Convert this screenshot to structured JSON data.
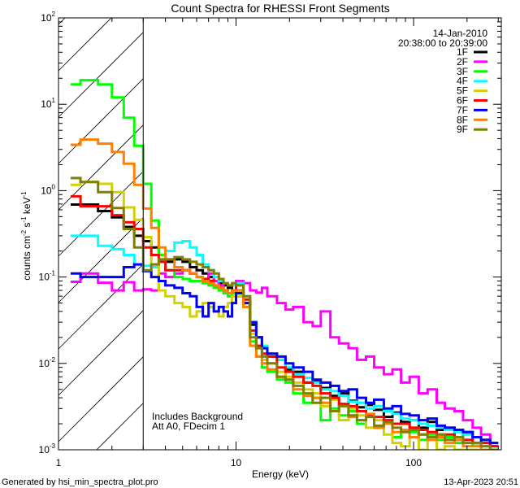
{
  "chart_data": {
    "type": "line",
    "step": true,
    "title": "Count Spectra for RHESSI Front Segments",
    "xlabel": "Energy (keV)",
    "ylabel": "counts cm-2 s-1 keV-1",
    "ylabel_parts": [
      "counts cm",
      "-2",
      " s",
      "-1",
      " keV",
      "-1"
    ],
    "xscale": "log",
    "yscale": "log",
    "xlim": [
      1,
      312
    ],
    "ylim": [
      0.001,
      100
    ],
    "x_ticks": [
      {
        "value": 1,
        "label": "1"
      },
      {
        "value": 10,
        "label": "10"
      },
      {
        "value": 100,
        "label": "100"
      }
    ],
    "y_ticks": [
      {
        "value": 100,
        "base": "10",
        "exp": "2"
      },
      {
        "value": 10,
        "base": "10",
        "exp": "1"
      },
      {
        "value": 1,
        "base": "10",
        "exp": "0"
      },
      {
        "value": 0.1,
        "base": "10",
        "exp": "-1"
      },
      {
        "value": 0.01,
        "base": "10",
        "exp": "-2"
      },
      {
        "value": 0.001,
        "base": "10",
        "exp": "-3"
      }
    ],
    "shaded_region_keV": [
      1,
      3
    ],
    "legend": {
      "position": "top-right",
      "date": "14-Jan-2010",
      "time_range": "20:38:00 to 20:39:00"
    },
    "annotations": [
      "Includes Background",
      "Att A0, FDecim 1"
    ],
    "bin_edges_keV": [
      1.17,
      1.33,
      1.67,
      2.0,
      2.33,
      2.67,
      3.0,
      3.33,
      3.67,
      4.0,
      4.5,
      5.0,
      5.5,
      6.0,
      6.5,
      7.0,
      7.5,
      8.0,
      8.5,
      9.0,
      9.5,
      10,
      11,
      12,
      13,
      14,
      15,
      17,
      19,
      21,
      24,
      27,
      30,
      34,
      38,
      43,
      48,
      54,
      60,
      68,
      76,
      85,
      95,
      107,
      120,
      135,
      150,
      170,
      190,
      215,
      240,
      270,
      300
    ],
    "series": [
      {
        "name": "1F",
        "color": "#000000",
        "values": [
          0.69,
          0.69,
          0.58,
          0.49,
          0.38,
          0.3,
          0.26,
          0.22,
          0.18,
          0.15,
          0.16,
          0.15,
          0.13,
          0.12,
          0.11,
          0.1,
          0.09,
          0.085,
          0.08,
          0.075,
          0.07,
          0.07,
          0.05,
          0.028,
          0.02,
          0.015,
          0.012,
          0.011,
          0.0085,
          0.008,
          0.006,
          0.0062,
          0.0052,
          0.0042,
          0.0045,
          0.0037,
          0.0031,
          0.0033,
          0.0029,
          0.0024,
          0.0027,
          0.0021,
          0.0022,
          0.0018,
          0.0021,
          0.0017,
          0.0018,
          0.0014,
          0.0016,
          0.0012,
          0.0013,
          0.0011
        ]
      },
      {
        "name": "2F",
        "color": "#ff00ff",
        "values": [
          0.088,
          0.11,
          0.086,
          0.07,
          0.087,
          0.07,
          0.072,
          0.07,
          0.11,
          0.1,
          0.11,
          0.12,
          0.11,
          0.1,
          0.09,
          0.11,
          0.09,
          0.08,
          0.07,
          0.06,
          0.07,
          0.09,
          0.085,
          0.07,
          0.066,
          0.075,
          0.06,
          0.05,
          0.042,
          0.045,
          0.03,
          0.027,
          0.04,
          0.02,
          0.017,
          0.015,
          0.011,
          0.012,
          0.009,
          0.0075,
          0.0085,
          0.006,
          0.007,
          0.0045,
          0.005,
          0.0035,
          0.003,
          0.0028,
          0.0022,
          0.0018,
          0.0015,
          0.0012
        ]
      },
      {
        "name": "3F",
        "color": "#00ff00",
        "values": [
          17,
          19,
          17,
          12,
          7,
          3.3,
          1.2,
          0.45,
          0.18,
          0.12,
          0.1,
          0.095,
          0.09,
          0.09,
          0.085,
          0.08,
          0.075,
          0.07,
          0.065,
          0.06,
          0.065,
          0.06,
          0.045,
          0.018,
          0.012,
          0.009,
          0.008,
          0.0065,
          0.006,
          0.0045,
          0.0035,
          0.004,
          0.0022,
          0.003,
          0.0025,
          0.0028,
          0.002,
          0.0024,
          0.0018,
          0.002,
          0.0014,
          0.0017,
          0.0016,
          0.0013,
          0.0015,
          0.0013,
          0.0014,
          0.0012,
          0.0013,
          0.0011,
          0.0011,
          0.001
        ]
      },
      {
        "name": "4F",
        "color": "#00ffff",
        "values": [
          0.3,
          0.3,
          0.23,
          0.21,
          0.18,
          0.14,
          0.135,
          0.13,
          0.16,
          0.2,
          0.25,
          0.26,
          0.22,
          0.18,
          0.14,
          0.12,
          0.1,
          0.09,
          0.085,
          0.08,
          0.08,
          0.085,
          0.06,
          0.03,
          0.02,
          0.016,
          0.013,
          0.011,
          0.009,
          0.0075,
          0.0068,
          0.006,
          0.005,
          0.0048,
          0.0042,
          0.0036,
          0.0035,
          0.003,
          0.0032,
          0.0028,
          0.0026,
          0.0023,
          0.0022,
          0.002,
          0.0019,
          0.0018,
          0.0017,
          0.0016,
          0.0015,
          0.0014,
          0.0013,
          0.0011
        ]
      },
      {
        "name": "5F",
        "color": "#d2d200",
        "values": [
          1.17,
          1.26,
          1.2,
          0.96,
          0.64,
          0.46,
          0.29,
          0.14,
          0.07,
          0.06,
          0.05,
          0.045,
          0.035,
          0.04,
          0.05,
          0.045,
          0.04,
          0.035,
          0.045,
          0.05,
          0.06,
          0.06,
          0.045,
          0.022,
          0.015,
          0.011,
          0.01,
          0.008,
          0.007,
          0.006,
          0.005,
          0.0045,
          0.0032,
          0.0038,
          0.0022,
          0.003,
          0.0025,
          0.0018,
          0.0022,
          0.0015,
          0.0012,
          0.0011,
          0.0018,
          0.0009,
          0.0013,
          0.0009,
          0.0011,
          0.001,
          0.0009,
          0.001,
          0.0009,
          0.0009
        ]
      },
      {
        "name": "6F",
        "color": "#ff0000",
        "values": [
          0.86,
          0.66,
          0.66,
          0.52,
          0.43,
          0.36,
          0.22,
          0.18,
          0.15,
          0.12,
          0.12,
          0.12,
          0.11,
          0.1,
          0.095,
          0.09,
          0.08,
          0.075,
          0.07,
          0.065,
          0.07,
          0.08,
          0.055,
          0.024,
          0.016,
          0.013,
          0.012,
          0.009,
          0.008,
          0.007,
          0.006,
          0.0055,
          0.0045,
          0.004,
          0.0034,
          0.0032,
          0.0028,
          0.0025,
          0.0024,
          0.0022,
          0.002,
          0.002,
          0.0018,
          0.0017,
          0.0016,
          0.0015,
          0.0015,
          0.0014,
          0.0013,
          0.0012,
          0.0012,
          0.0011
        ]
      },
      {
        "name": "7F",
        "color": "#0000ff",
        "values": [
          0.11,
          0.1,
          0.1,
          0.1,
          0.13,
          0.14,
          0.117,
          0.1,
          0.09,
          0.08,
          0.075,
          0.065,
          0.06,
          0.045,
          0.035,
          0.05,
          0.04,
          0.045,
          0.04,
          0.035,
          0.05,
          0.065,
          0.05,
          0.03,
          0.02,
          0.015,
          0.013,
          0.012,
          0.01,
          0.009,
          0.008,
          0.0065,
          0.006,
          0.0055,
          0.0048,
          0.005,
          0.004,
          0.0035,
          0.0038,
          0.003,
          0.0032,
          0.0026,
          0.0025,
          0.0022,
          0.0023,
          0.0019,
          0.0018,
          0.0017,
          0.0016,
          0.0014,
          0.0013,
          0.0012
        ]
      },
      {
        "name": "8F",
        "color": "#ff8000",
        "values": [
          3.4,
          3.9,
          3.5,
          2.8,
          2.05,
          1.17,
          0.62,
          0.37,
          0.22,
          0.16,
          0.13,
          0.12,
          0.11,
          0.1,
          0.09,
          0.085,
          0.08,
          0.075,
          0.07,
          0.065,
          0.07,
          0.07,
          0.045,
          0.016,
          0.012,
          0.01,
          0.0085,
          0.007,
          0.0065,
          0.005,
          0.0042,
          0.004,
          0.0035,
          0.0028,
          0.0032,
          0.0024,
          0.0022,
          0.0026,
          0.0018,
          0.002,
          0.0016,
          0.0017,
          0.0014,
          0.0015,
          0.0013,
          0.0014,
          0.0012,
          0.0013,
          0.0011,
          0.0011,
          0.001,
          0.001
        ]
      },
      {
        "name": "9F",
        "color": "#808000",
        "values": [
          1.4,
          1.26,
          0.96,
          0.63,
          0.36,
          0.22,
          0.12,
          0.14,
          0.16,
          0.16,
          0.17,
          0.16,
          0.15,
          0.14,
          0.13,
          0.12,
          0.11,
          0.095,
          0.085,
          0.08,
          0.085,
          0.08,
          0.06,
          0.02,
          0.015,
          0.012,
          0.01,
          0.007,
          0.0065,
          0.0055,
          0.0045,
          0.0035,
          0.004,
          0.0028,
          0.0032,
          0.0025,
          0.0022,
          0.0024,
          0.0019,
          0.0021,
          0.0018,
          0.0016,
          0.0017,
          0.0015,
          0.0014,
          0.0015,
          0.0013,
          0.0014,
          0.0012,
          0.0012,
          0.0011,
          0.001
        ]
      }
    ]
  },
  "footer": {
    "generated_by": "Generated by hsi_min_spectra_plot.pro",
    "timestamp": "13-Apr-2023 20:51"
  }
}
